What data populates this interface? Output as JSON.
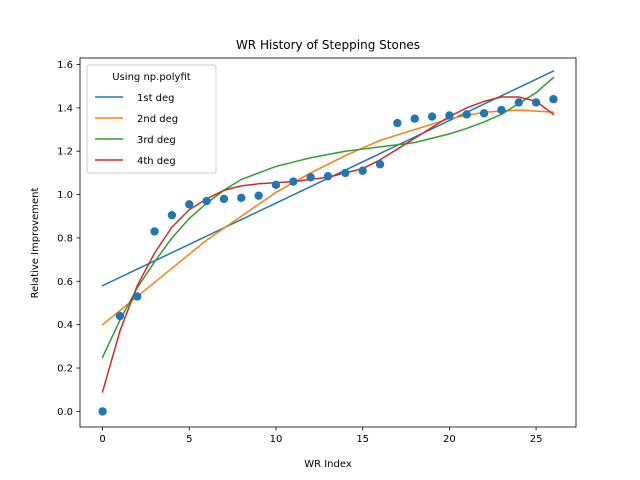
{
  "chart_data": {
    "type": "scatter",
    "title": "WR History of Stepping Stones",
    "xlabel": "WR Index",
    "ylabel": "Relative Improvement",
    "xlim": [
      -1.3,
      27.3
    ],
    "ylim": [
      -0.072,
      1.63
    ],
    "xticks": [
      0,
      5,
      10,
      15,
      20,
      25
    ],
    "yticks": [
      0.0,
      0.2,
      0.4,
      0.6,
      0.8,
      1.0,
      1.2,
      1.4,
      1.6
    ],
    "xtick_labels": [
      "0",
      "5",
      "10",
      "15",
      "20",
      "25"
    ],
    "ytick_labels": [
      "0.0",
      "0.2",
      "0.4",
      "0.6",
      "0.8",
      "1.0",
      "1.2",
      "1.4",
      "1.6"
    ],
    "grid": false,
    "legend": {
      "title": "Using np.polyfit",
      "placement": "upper-left"
    },
    "points": {
      "color": "#1f77b4",
      "x": [
        0,
        1,
        2,
        3,
        4,
        5,
        6,
        7,
        8,
        9,
        10,
        11,
        12,
        13,
        14,
        15,
        16,
        17,
        18,
        19,
        20,
        21,
        22,
        23,
        24,
        25,
        26
      ],
      "y": [
        0.0,
        0.44,
        0.53,
        0.83,
        0.905,
        0.955,
        0.97,
        0.98,
        0.985,
        0.995,
        1.045,
        1.06,
        1.08,
        1.085,
        1.1,
        1.11,
        1.14,
        1.33,
        1.35,
        1.36,
        1.365,
        1.37,
        1.375,
        1.39,
        1.425,
        1.425,
        1.44
      ]
    },
    "series": [
      {
        "name": "1st deg",
        "color": "#1f77b4",
        "x": [
          0,
          26
        ],
        "y": [
          0.58,
          1.57
        ]
      },
      {
        "name": "2nd deg",
        "color": "#ff7f0e",
        "x": [
          0,
          2,
          4,
          6,
          8,
          10,
          12,
          14,
          16,
          18,
          20,
          22,
          24,
          26
        ],
        "y": [
          0.4,
          0.53,
          0.66,
          0.79,
          0.9,
          1.01,
          1.1,
          1.18,
          1.25,
          1.3,
          1.35,
          1.38,
          1.39,
          1.38
        ]
      },
      {
        "name": "3rd deg",
        "color": "#2ca02c",
        "x": [
          0,
          1,
          2,
          3,
          4,
          5,
          6,
          7,
          8,
          9,
          10,
          11,
          12,
          13,
          14,
          15,
          16,
          17,
          18,
          19,
          20,
          21,
          22,
          23,
          24,
          25,
          26
        ],
        "y": [
          0.25,
          0.42,
          0.57,
          0.69,
          0.8,
          0.89,
          0.96,
          1.02,
          1.07,
          1.1,
          1.13,
          1.15,
          1.17,
          1.185,
          1.2,
          1.21,
          1.22,
          1.23,
          1.24,
          1.26,
          1.28,
          1.305,
          1.335,
          1.37,
          1.42,
          1.47,
          1.54
        ]
      },
      {
        "name": "4th deg",
        "color": "#d62728",
        "x": [
          0,
          1,
          2,
          3,
          4,
          5,
          6,
          7,
          8,
          9,
          10,
          11,
          12,
          13,
          14,
          15,
          16,
          17,
          18,
          19,
          20,
          21,
          22,
          23,
          24,
          25,
          26
        ],
        "y": [
          0.09,
          0.37,
          0.58,
          0.73,
          0.85,
          0.93,
          0.98,
          1.02,
          1.04,
          1.05,
          1.055,
          1.06,
          1.07,
          1.08,
          1.1,
          1.12,
          1.16,
          1.21,
          1.26,
          1.31,
          1.36,
          1.4,
          1.43,
          1.45,
          1.45,
          1.43,
          1.37
        ]
      }
    ]
  }
}
